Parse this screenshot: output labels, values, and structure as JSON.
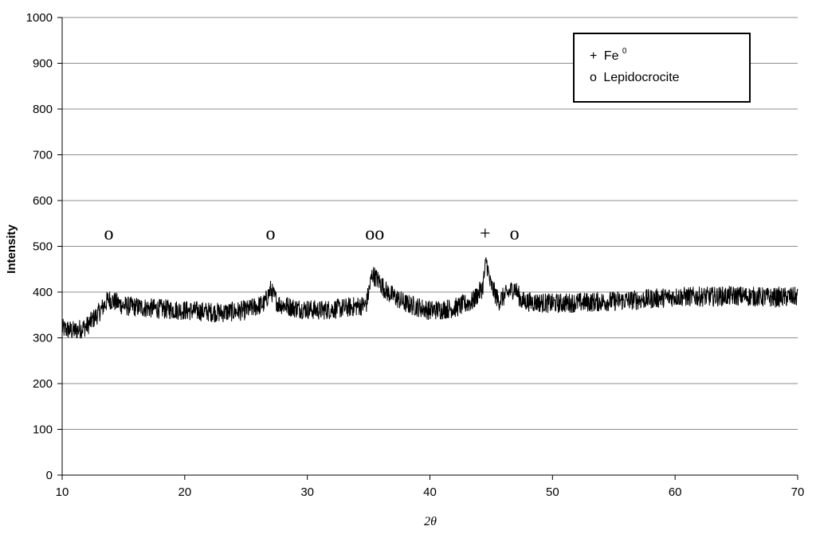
{
  "chart_data": {
    "type": "line",
    "title": "",
    "xlabel": "2θ",
    "ylabel": "Intensity",
    "xlim": [
      10,
      70
    ],
    "ylim": [
      0,
      1000
    ],
    "x_ticks": [
      10,
      20,
      30,
      40,
      50,
      60,
      70
    ],
    "y_ticks": [
      0,
      100,
      200,
      300,
      400,
      500,
      600,
      700,
      800,
      900,
      1000
    ],
    "grid": "horizontal",
    "legend_position": "top-right",
    "legend": [
      {
        "symbol": "+",
        "label": "Fe",
        "superscript": "0"
      },
      {
        "symbol": "o",
        "label": "Lepidocrocite"
      }
    ],
    "peak_markers": [
      {
        "x": 13.8,
        "symbol": "o"
      },
      {
        "x": 27.0,
        "symbol": "o"
      },
      {
        "x": 35.5,
        "symbol": "oo"
      },
      {
        "x": 44.5,
        "symbol": "+"
      },
      {
        "x": 46.9,
        "symbol": "o"
      }
    ],
    "series": [
      {
        "values_note_points": [
          [
            10.0,
            320
          ],
          [
            11.0,
            315
          ],
          [
            12.0,
            325
          ],
          [
            13.0,
            355
          ],
          [
            13.8,
            385
          ],
          [
            15.0,
            370
          ],
          [
            17.0,
            365
          ],
          [
            20.0,
            360
          ],
          [
            23.0,
            355
          ],
          [
            25.0,
            360
          ],
          [
            26.5,
            375
          ],
          [
            27.0,
            405
          ],
          [
            27.6,
            375
          ],
          [
            29.0,
            365
          ],
          [
            31.0,
            360
          ],
          [
            33.0,
            365
          ],
          [
            34.8,
            372
          ],
          [
            35.3,
            440
          ],
          [
            35.8,
            425
          ],
          [
            36.5,
            400
          ],
          [
            38.0,
            375
          ],
          [
            40.0,
            360
          ],
          [
            42.0,
            365
          ],
          [
            43.5,
            380
          ],
          [
            44.3,
            410
          ],
          [
            44.6,
            470
          ],
          [
            44.9,
            420
          ],
          [
            45.6,
            380
          ],
          [
            46.9,
            410
          ],
          [
            47.5,
            380
          ],
          [
            50.0,
            375
          ],
          [
            53.0,
            378
          ],
          [
            55.0,
            380
          ],
          [
            58.0,
            385
          ],
          [
            60.0,
            390
          ],
          [
            63.0,
            390
          ],
          [
            65.0,
            392
          ],
          [
            68.0,
            388
          ],
          [
            70.0,
            390
          ]
        ],
        "noise_amplitude": 22
      }
    ]
  }
}
